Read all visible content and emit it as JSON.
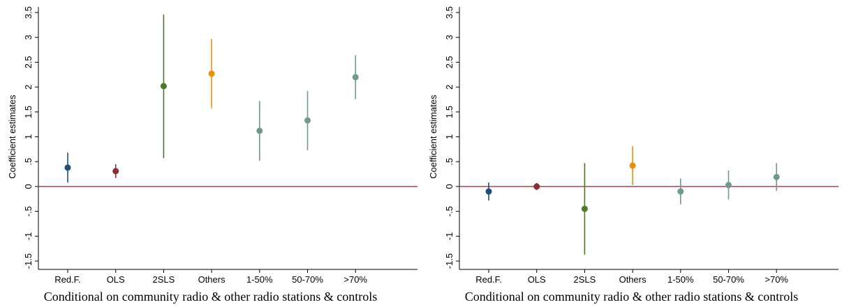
{
  "colors": {
    "zero_line": "#c0394f",
    "axis": "#000000",
    "series": [
      "#1f4e79",
      "#8b2e35",
      "#4a7a2a",
      "#e8900c",
      "#6f9a8a",
      "#6f9a8a",
      "#6f9a8a"
    ]
  },
  "chart_data": [
    {
      "type": "scatter",
      "caption": "Conditional on community radio & other radio stations & controls",
      "ylabel": "Coefficient estimates",
      "ylim": [
        -1.5,
        3.5
      ],
      "yticks": [
        "-1.5",
        "-1",
        "-.5",
        "0",
        ".5",
        "1",
        "1.5",
        "2",
        "2.5",
        "3",
        "3.5"
      ],
      "ytick_values": [
        -1.5,
        -1,
        -0.5,
        0,
        0.5,
        1,
        1.5,
        2,
        2.5,
        3,
        3.5
      ],
      "categories": [
        "Red.F.",
        "OLS",
        "2SLS",
        "Others",
        "1-50%",
        "50-70%",
        ">70%"
      ],
      "estimates": [
        0.38,
        0.31,
        2.02,
        2.27,
        1.12,
        1.33,
        2.2
      ],
      "ci_low": [
        0.08,
        0.17,
        0.57,
        1.57,
        0.52,
        0.73,
        1.76
      ],
      "ci_high": [
        0.68,
        0.45,
        3.46,
        2.97,
        1.72,
        1.92,
        2.64
      ]
    },
    {
      "type": "scatter",
      "caption": "Conditional on community radio & other radio stations & controls",
      "ylabel": "Coefficient estimates",
      "ylim": [
        -1.5,
        3.5
      ],
      "yticks": [
        "-1.5",
        "-1",
        "-.5",
        "0",
        ".5",
        "1",
        "1.5",
        "2",
        "2.5",
        "3",
        "3.5"
      ],
      "ytick_values": [
        -1.5,
        -1,
        -0.5,
        0,
        0.5,
        1,
        1.5,
        2,
        2.5,
        3,
        3.5
      ],
      "categories": [
        "Red.F.",
        "OLS",
        "2SLS",
        "Others",
        "1-50%",
        "50-70%",
        ">70%"
      ],
      "estimates": [
        -0.1,
        0.0,
        -0.45,
        0.42,
        -0.1,
        0.03,
        0.19
      ],
      "ci_low": [
        -0.28,
        -0.07,
        -1.37,
        0.03,
        -0.36,
        -0.26,
        -0.09
      ],
      "ci_high": [
        0.08,
        0.07,
        0.47,
        0.81,
        0.16,
        0.32,
        0.47
      ]
    }
  ]
}
